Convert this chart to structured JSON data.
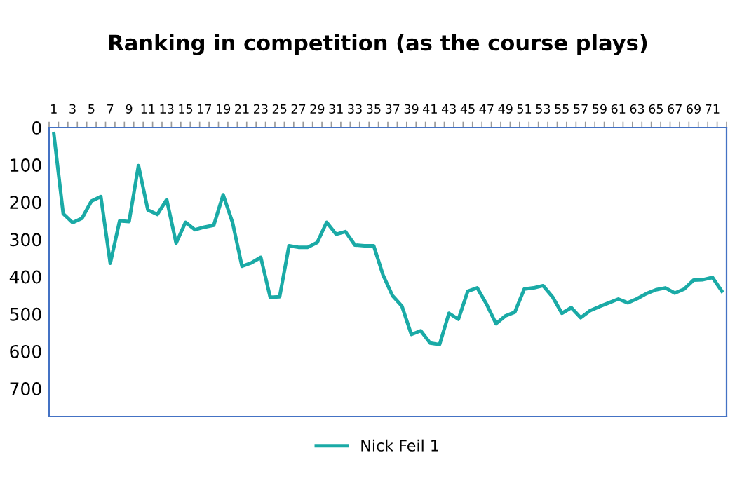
{
  "chart_data": {
    "type": "line",
    "title": "Ranking in competition (as the course plays)",
    "categories": [
      "1",
      null,
      "3",
      null,
      "5",
      null,
      "7",
      null,
      "9",
      null,
      "11",
      null,
      "13",
      null,
      "15",
      null,
      "17",
      null,
      "19",
      null,
      "21",
      null,
      "23",
      null,
      "25",
      null,
      "27",
      null,
      "29",
      null,
      "31",
      null,
      "33",
      null,
      "35",
      null,
      "37",
      null,
      "39",
      null,
      "41",
      null,
      "43",
      null,
      "45",
      null,
      "47",
      null,
      "49",
      null,
      "51",
      null,
      "53",
      null,
      "55",
      null,
      "57",
      null,
      "59",
      null,
      "61",
      null,
      "63",
      null,
      "65",
      null,
      "67",
      null,
      "69",
      null,
      "71",
      null
    ],
    "series": [
      {
        "name": "Nick Feil 1",
        "color": "#1aaaa6",
        "values": [
          16,
          231,
          255,
          243,
          197,
          185,
          364,
          250,
          252,
          102,
          221,
          233,
          193,
          310,
          254,
          274,
          267,
          262,
          180,
          255,
          372,
          363,
          348,
          455,
          454,
          317,
          321,
          321,
          308,
          254,
          286,
          279,
          315,
          317,
          317,
          396,
          451,
          479,
          555,
          545,
          578,
          582,
          498,
          514,
          439,
          430,
          474,
          526,
          505,
          495,
          433,
          430,
          424,
          454,
          498,
          483,
          510,
          491,
          480,
          470,
          460,
          470,
          459,
          445,
          435,
          430,
          444,
          433,
          409,
          408,
          402,
          439
        ]
      }
    ],
    "ylim": [
      775,
      0
    ],
    "yticks": [
      0,
      100,
      200,
      300,
      400,
      500,
      600,
      700
    ],
    "grid": false,
    "legend": "bottom",
    "marker": "none",
    "line_style": "solid"
  }
}
